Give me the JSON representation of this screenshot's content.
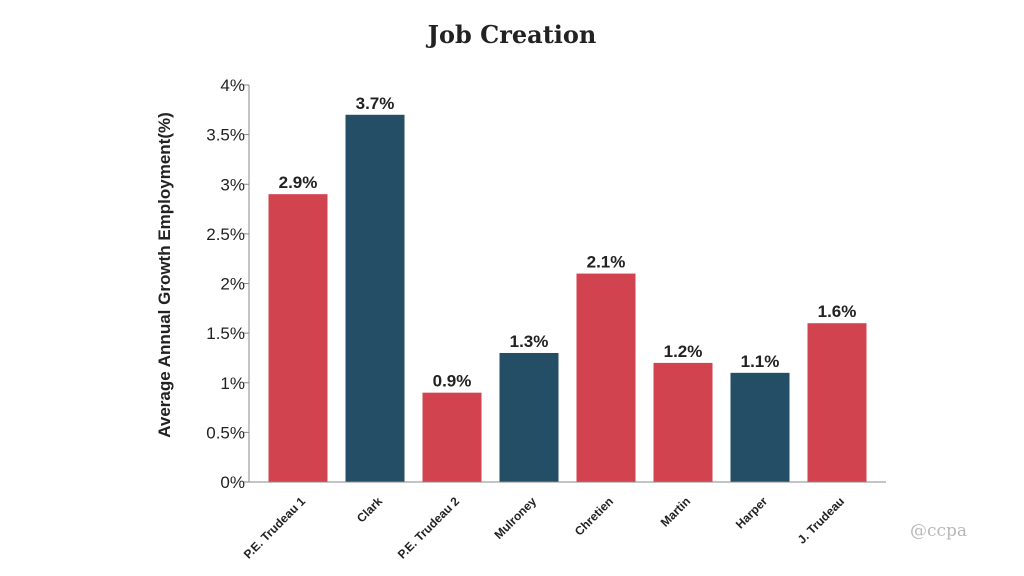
{
  "chart_data": {
    "type": "bar",
    "title": "Job Creation",
    "xlabel": "",
    "ylabel": "Average Annual Growth Employment(%)",
    "categories": [
      "P.E. Trudeau 1",
      "Clark",
      "P.E. Trudeau 2",
      "Mulroney",
      "Chretien",
      "Martin",
      "Harper",
      "J. Trudeau"
    ],
    "values": [
      2.9,
      3.7,
      0.9,
      1.3,
      2.1,
      1.2,
      1.1,
      1.6
    ],
    "value_labels": [
      "2.9%",
      "3.7%",
      "0.9%",
      "1.3%",
      "2.1%",
      "1.2%",
      "1.1%",
      "1.6%"
    ],
    "bar_colors": [
      "#d1434e",
      "#244e66",
      "#d1434e",
      "#244e66",
      "#d1434e",
      "#d1434e",
      "#244e66",
      "#d1434e"
    ],
    "yticks": [
      "0%",
      "0.5%",
      "1%",
      "1.5%",
      "2%",
      "2.5%",
      "3%",
      "3.5%",
      "4%"
    ],
    "ylim": [
      0,
      4
    ],
    "grid": false,
    "legend": "none"
  },
  "watermark": "@ccpa",
  "colors": {
    "red": "#d1434e",
    "blue": "#244e66",
    "axis": "#888888",
    "text": "#222222"
  }
}
